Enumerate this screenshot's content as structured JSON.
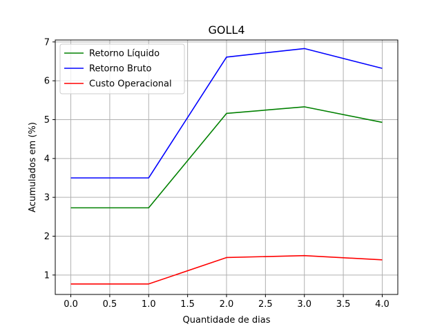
{
  "chart_data": {
    "type": "line",
    "title": "GOLL4",
    "xlabel": "Quantidade de dias",
    "ylabel": "Acumulados em (%)",
    "x": [
      0,
      1,
      2,
      3,
      4
    ],
    "xlim": [
      -0.2,
      4.2
    ],
    "ylim": [
      0.5,
      7.05
    ],
    "x_ticks": [
      0.0,
      0.5,
      1.0,
      1.5,
      2.0,
      2.5,
      3.0,
      3.5,
      4.0
    ],
    "x_tick_labels": [
      "0.0",
      "0.5",
      "1.0",
      "1.5",
      "2.0",
      "2.5",
      "3.0",
      "3.5",
      "4.0"
    ],
    "y_ticks": [
      1,
      2,
      3,
      4,
      5,
      6,
      7
    ],
    "y_tick_labels": [
      "1",
      "2",
      "3",
      "4",
      "5",
      "6",
      "7"
    ],
    "grid": true,
    "legend_position": "top-left",
    "series": [
      {
        "name": "Retorno Líquido",
        "color": "#008000",
        "values": [
          2.73,
          2.73,
          5.16,
          5.33,
          4.93
        ]
      },
      {
        "name": "Retorno Bruto",
        "color": "#0000ff",
        "values": [
          3.5,
          3.5,
          6.61,
          6.83,
          6.32
        ]
      },
      {
        "name": "Custo Operacional",
        "color": "#ff0000",
        "values": [
          0.77,
          0.77,
          1.45,
          1.5,
          1.39
        ]
      }
    ]
  }
}
